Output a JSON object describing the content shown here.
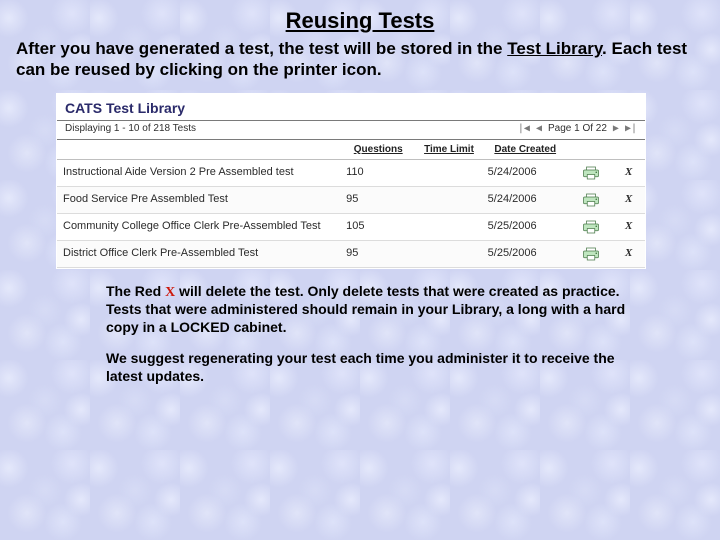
{
  "slide": {
    "title": "Reusing Tests",
    "intro_before": "After you have generated a test, the test will be stored in the ",
    "intro_underlined": "Test Library",
    "intro_after": ".  Each test can be reused by clicking on the printer icon."
  },
  "shot": {
    "title": "CATS Test Library",
    "displaying": "Displaying 1 - 10 of 218 Tests",
    "page_label": "Page 1 Of 22",
    "nav": {
      "first": "|◀",
      "prev": "◀",
      "next": "▶",
      "last": "▶|"
    },
    "headers": {
      "name": "",
      "questions": "Questions",
      "time_limit": "Time Limit",
      "date_created": "Date Created"
    },
    "rows": [
      {
        "name": "Instructional Aide Version 2 Pre Assembled test",
        "questions": "110",
        "time_limit": "",
        "date_created": "5/24/2006"
      },
      {
        "name": "Food Service Pre Assembled Test",
        "questions": "95",
        "time_limit": "",
        "date_created": "5/24/2006"
      },
      {
        "name": "Community College Office Clerk Pre-Assembled Test",
        "questions": "105",
        "time_limit": "",
        "date_created": "5/25/2006"
      },
      {
        "name": "District Office Clerk Pre-Assembled Test",
        "questions": "95",
        "time_limit": "",
        "date_created": "5/25/2006"
      }
    ],
    "delete_glyph": "X",
    "colors": {
      "row_border": "#dcdcdc",
      "header_border": "#bfbfbf",
      "title_color": "#2a2a6a",
      "printer_body": "#bfe6bf",
      "printer_outline": "#4a7a4a",
      "delete_color": "#cc1a0d"
    }
  },
  "foot": {
    "p1_before": "The Red ",
    "p1_x": "X",
    "p1_after": " will delete the test.  Only delete tests that were created as practice.  Tests that were administered should remain in your Library, a long with a hard copy in a LOCKED cabinet.",
    "p2": "We suggest regenerating your test each time you administer it to receive the latest updates."
  }
}
